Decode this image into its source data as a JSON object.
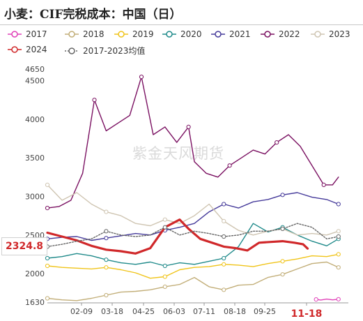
{
  "title": "小麦：CIF完税成本：中国（日）",
  "watermark": "紫金天风期货",
  "last_value_label": "2324.8",
  "colors": {
    "2017": "#e040b8",
    "2018": "#c2ae78",
    "2019": "#f0c419",
    "2020": "#1f8a8a",
    "2021": "#453a9a",
    "2022": "#7a1061",
    "2023": "#cfc5b2",
    "2024": "#d0282a",
    "avg": "#666666"
  },
  "chart_data": {
    "type": "line",
    "title": "小麦：CIF完税成本：中国（日）",
    "xlabel": "",
    "ylabel": "",
    "ylim": [
      1630,
      4650
    ],
    "y_ticks": [
      "4650",
      "4500",
      "4000",
      "3500",
      "3000",
      "2500",
      "2000",
      "1630"
    ],
    "x_ticks": [
      "02-09",
      "03-18",
      "04-25",
      "06-03",
      "07-11",
      "08-18",
      "09-25",
      "11-18"
    ],
    "highlight_x_tick": "11-18",
    "legend_position": "top",
    "grid": false,
    "series": [
      {
        "name": "2017",
        "style": "solid",
        "x": [
          0.914,
          0.93,
          0.95,
          0.97,
          0.99
        ],
        "y": [
          1665,
          1658,
          1670,
          1660,
          1668
        ]
      },
      {
        "name": "2018",
        "style": "solid",
        "x": [
          0,
          0.05,
          0.1,
          0.15,
          0.2,
          0.25,
          0.3,
          0.35,
          0.4,
          0.45,
          0.5,
          0.55,
          0.6,
          0.65,
          0.7,
          0.75,
          0.8,
          0.85,
          0.9,
          0.95,
          0.99
        ],
        "y": [
          1680,
          1660,
          1650,
          1680,
          1720,
          1760,
          1770,
          1790,
          1830,
          1860,
          1950,
          1830,
          1790,
          1850,
          1860,
          1950,
          1990,
          2060,
          2130,
          2150,
          2080
        ]
      },
      {
        "name": "2019",
        "style": "solid",
        "x": [
          0,
          0.05,
          0.1,
          0.15,
          0.2,
          0.25,
          0.3,
          0.35,
          0.4,
          0.45,
          0.5,
          0.55,
          0.6,
          0.65,
          0.7,
          0.75,
          0.8,
          0.85,
          0.9,
          0.95,
          0.99
        ],
        "y": [
          2100,
          2080,
          2070,
          2060,
          2080,
          2050,
          2010,
          1940,
          1960,
          2050,
          2080,
          2090,
          2120,
          2110,
          2090,
          2130,
          2160,
          2190,
          2230,
          2220,
          2250
        ]
      },
      {
        "name": "2020",
        "style": "solid",
        "x": [
          0,
          0.05,
          0.1,
          0.15,
          0.2,
          0.25,
          0.3,
          0.35,
          0.4,
          0.45,
          0.5,
          0.55,
          0.6,
          0.65,
          0.7,
          0.75,
          0.8,
          0.85,
          0.9,
          0.95,
          0.99
        ],
        "y": [
          2200,
          2220,
          2260,
          2230,
          2180,
          2140,
          2120,
          2150,
          2100,
          2140,
          2120,
          2160,
          2200,
          2350,
          2650,
          2540,
          2600,
          2500,
          2420,
          2360,
          2450
        ]
      },
      {
        "name": "2021",
        "style": "solid",
        "x": [
          0,
          0.05,
          0.1,
          0.15,
          0.2,
          0.25,
          0.3,
          0.35,
          0.4,
          0.45,
          0.5,
          0.55,
          0.6,
          0.65,
          0.7,
          0.75,
          0.8,
          0.85,
          0.9,
          0.95,
          0.99
        ],
        "y": [
          2450,
          2470,
          2480,
          2430,
          2460,
          2490,
          2520,
          2500,
          2560,
          2600,
          2650,
          2800,
          2900,
          2850,
          2930,
          2960,
          3020,
          3050,
          2990,
          2960,
          2900
        ]
      },
      {
        "name": "2022",
        "style": "solid",
        "x": [
          0,
          0.04,
          0.08,
          0.12,
          0.16,
          0.2,
          0.24,
          0.28,
          0.32,
          0.36,
          0.4,
          0.44,
          0.48,
          0.5,
          0.54,
          0.58,
          0.62,
          0.66,
          0.7,
          0.74,
          0.78,
          0.82,
          0.86,
          0.9,
          0.94,
          0.97,
          0.99
        ],
        "y": [
          2850,
          2870,
          2950,
          3300,
          4250,
          3850,
          3950,
          4050,
          4550,
          3800,
          3900,
          3700,
          3900,
          3450,
          3300,
          3250,
          3400,
          3500,
          3600,
          3550,
          3700,
          3800,
          3650,
          3400,
          3150,
          3150,
          3250
        ]
      },
      {
        "name": "2023",
        "style": "solid",
        "x": [
          0,
          0.05,
          0.1,
          0.15,
          0.2,
          0.25,
          0.3,
          0.35,
          0.4,
          0.45,
          0.5,
          0.55,
          0.6,
          0.65,
          0.7,
          0.75,
          0.8,
          0.85,
          0.9,
          0.95,
          0.99
        ],
        "y": [
          3150,
          2950,
          3050,
          2900,
          2800,
          2750,
          2650,
          2620,
          2700,
          2650,
          2750,
          2900,
          2680,
          2560,
          2500,
          2550,
          2580,
          2500,
          2520,
          2500,
          2550
        ]
      },
      {
        "name": "2024",
        "style": "solid",
        "bold": true,
        "x": [
          0,
          0.05,
          0.1,
          0.15,
          0.2,
          0.25,
          0.3,
          0.35,
          0.4,
          0.45,
          0.48,
          0.52,
          0.56,
          0.6,
          0.64,
          0.68,
          0.72,
          0.76,
          0.8,
          0.84,
          0.87,
          0.885
        ],
        "y": [
          2530,
          2480,
          2430,
          2360,
          2310,
          2290,
          2260,
          2330,
          2600,
          2700,
          2580,
          2450,
          2400,
          2350,
          2330,
          2300,
          2400,
          2410,
          2420,
          2400,
          2380,
          2324.8
        ]
      },
      {
        "name": "2017-2023均值",
        "style": "dotted",
        "x": [
          0,
          0.05,
          0.1,
          0.15,
          0.2,
          0.25,
          0.3,
          0.35,
          0.4,
          0.45,
          0.5,
          0.55,
          0.6,
          0.65,
          0.7,
          0.75,
          0.8,
          0.85,
          0.9,
          0.95,
          0.99
        ],
        "y": [
          2350,
          2380,
          2420,
          2450,
          2550,
          2500,
          2480,
          2500,
          2600,
          2500,
          2550,
          2520,
          2480,
          2500,
          2550,
          2550,
          2580,
          2650,
          2600,
          2450,
          2480
        ]
      }
    ]
  },
  "legend": [
    {
      "label": "2017",
      "key": "2017",
      "dashed": false
    },
    {
      "label": "2018",
      "key": "2018",
      "dashed": false
    },
    {
      "label": "2019",
      "key": "2019",
      "dashed": false
    },
    {
      "label": "2020",
      "key": "2020",
      "dashed": false
    },
    {
      "label": "2021",
      "key": "2021",
      "dashed": false
    },
    {
      "label": "2022",
      "key": "2022",
      "dashed": false
    },
    {
      "label": "2023",
      "key": "2023",
      "dashed": false
    },
    {
      "label": "2024",
      "key": "2024",
      "dashed": false
    },
    {
      "label": "2017-2023均值",
      "key": "avg",
      "dashed": true
    }
  ]
}
